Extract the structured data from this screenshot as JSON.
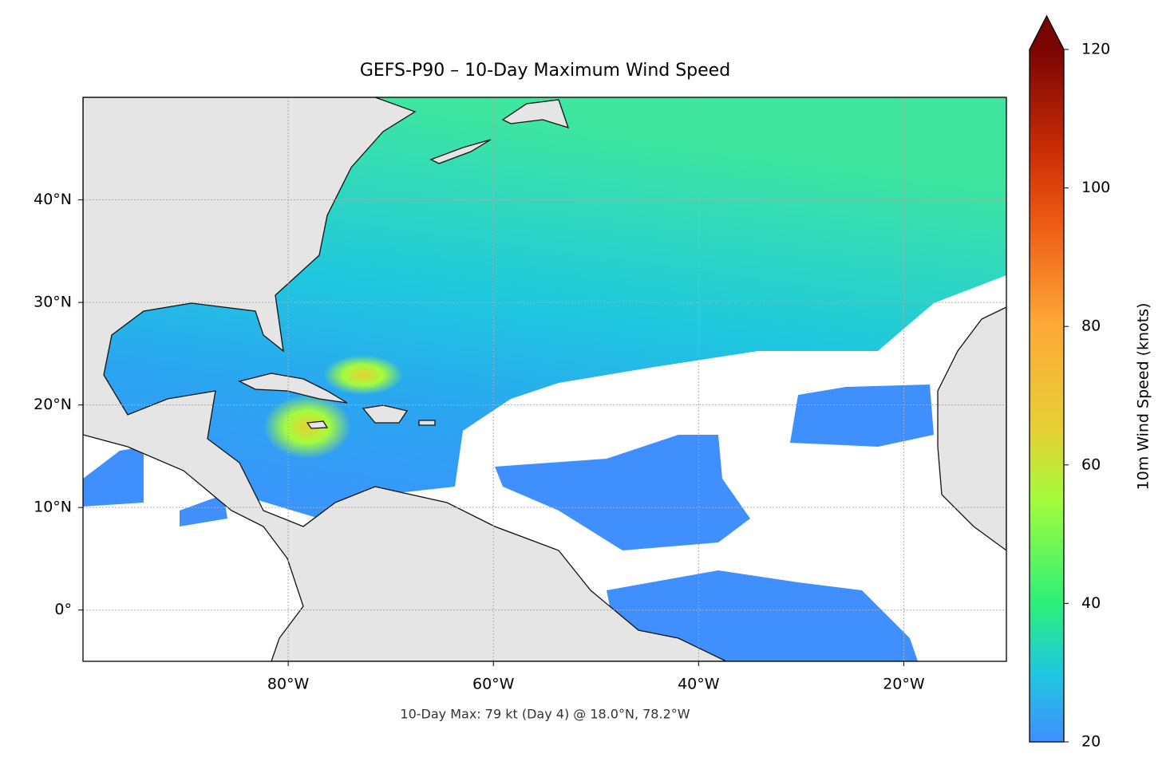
{
  "chart_data": {
    "type": "map",
    "title": "GEFS-P90 – 10-Day Maximum Wind Speed",
    "annotation": "10-Day Max: 79 kt (Day 4) @ 18.0°N, 78.2°W",
    "xlim": [
      -100,
      -10
    ],
    "ylim": [
      -5,
      50
    ],
    "xticks": [
      {
        "value": -80,
        "label": "80°W"
      },
      {
        "value": -60,
        "label": "60°W"
      },
      {
        "value": -40,
        "label": "40°W"
      },
      {
        "value": -20,
        "label": "20°W"
      }
    ],
    "yticks": [
      {
        "value": 0,
        "label": "0°"
      },
      {
        "value": 10,
        "label": "10°N"
      },
      {
        "value": 20,
        "label": "20°N"
      },
      {
        "value": 30,
        "label": "30°N"
      },
      {
        "value": 40,
        "label": "40°N"
      }
    ],
    "grid": true,
    "colorbar": {
      "label": "10m Wind Speed (knots)",
      "lim": [
        20,
        120
      ],
      "ticks": [
        20,
        40,
        60,
        80,
        100,
        120
      ],
      "extend": "max",
      "colormap": [
        {
          "value": 20,
          "color": "#3f8ffe"
        },
        {
          "value": 30,
          "color": "#1fc8de"
        },
        {
          "value": 40,
          "color": "#2bf07a"
        },
        {
          "value": 55,
          "color": "#a4fc3c"
        },
        {
          "value": 65,
          "color": "#e6d034"
        },
        {
          "value": 80,
          "color": "#fdaa38"
        },
        {
          "value": 95,
          "color": "#ee5a14"
        },
        {
          "value": 105,
          "color": "#cc2e06"
        },
        {
          "value": 120,
          "color": "#7a0403"
        }
      ]
    }
  }
}
